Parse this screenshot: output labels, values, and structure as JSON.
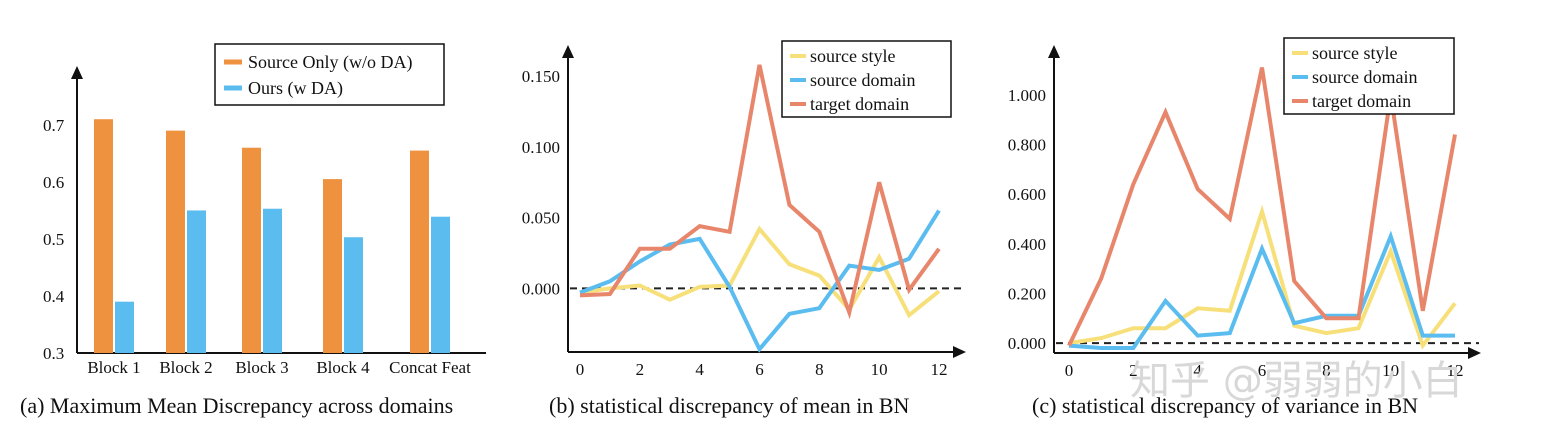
{
  "watermark": "知乎 @弱弱的小白",
  "chart_data": [
    {
      "id": "a",
      "type": "bar",
      "caption": "(a) Maximum Mean Discrepancy across domains",
      "categories": [
        "Block 1",
        "Block 2",
        "Block 3",
        "Block 4",
        "Concat Feat"
      ],
      "series": [
        {
          "name": "Source Only (w/o DA)",
          "color": "#ef9240",
          "values": [
            0.71,
            0.69,
            0.66,
            0.605,
            0.655
          ]
        },
        {
          "name": "Ours (w DA)",
          "color": "#5bbcf0",
          "values": [
            0.39,
            0.55,
            0.553,
            0.503,
            0.539
          ]
        }
      ],
      "yticks": [
        "0.3",
        "0.4",
        "0.5",
        "0.6",
        "0.7"
      ],
      "ytick_values": [
        0.3,
        0.4,
        0.5,
        0.6,
        0.7
      ],
      "ylim": [
        0.3,
        0.77
      ],
      "legend_position": "top-right"
    },
    {
      "id": "b",
      "type": "line",
      "caption": "(b) statistical discrepancy of mean in BN",
      "x": [
        0,
        1,
        2,
        3,
        4,
        5,
        6,
        7,
        8,
        9,
        10,
        11,
        12
      ],
      "series": [
        {
          "name": "source style",
          "color": "#f7e07a",
          "values": [
            -0.003,
            0.0,
            0.002,
            -0.008,
            0.001,
            0.002,
            0.042,
            0.017,
            0.009,
            -0.015,
            0.022,
            -0.019,
            -0.002
          ]
        },
        {
          "name": "source domain",
          "color": "#5bbcf0",
          "values": [
            -0.003,
            0.005,
            0.019,
            0.031,
            0.035,
            0.001,
            -0.043,
            -0.018,
            -0.014,
            0.016,
            0.013,
            0.021,
            0.055
          ]
        },
        {
          "name": "target domain",
          "color": "#e8866b",
          "values": [
            -0.005,
            -0.004,
            0.028,
            0.028,
            0.044,
            0.04,
            0.158,
            0.059,
            0.04,
            -0.017,
            0.075,
            -0.001,
            0.028
          ]
        }
      ],
      "xticks": [
        "0",
        "2",
        "4",
        "6",
        "8",
        "10",
        "12"
      ],
      "xtick_values": [
        0,
        2,
        4,
        6,
        8,
        10,
        12
      ],
      "yticks": [
        "0.000",
        "0.050",
        "0.100",
        "0.150"
      ],
      "ytick_values": [
        0,
        0.05,
        0.1,
        0.15
      ],
      "ylim": [
        -0.045,
        0.165
      ],
      "reference_line": 0,
      "legend_position": "top-right"
    },
    {
      "id": "c",
      "type": "line",
      "caption": "(c) statistical discrepancy of variance in BN",
      "x": [
        0,
        1,
        2,
        3,
        4,
        5,
        6,
        7,
        8,
        9,
        10,
        11,
        12
      ],
      "series": [
        {
          "name": "source style",
          "color": "#f7e07a",
          "values": [
            0.0,
            0.02,
            0.06,
            0.06,
            0.14,
            0.13,
            0.53,
            0.07,
            0.04,
            0.06,
            0.37,
            -0.01,
            0.16
          ]
        },
        {
          "name": "source domain",
          "color": "#5bbcf0",
          "values": [
            -0.01,
            -0.02,
            -0.02,
            0.17,
            0.03,
            0.04,
            0.38,
            0.08,
            0.11,
            0.11,
            0.43,
            0.03,
            0.03
          ]
        },
        {
          "name": "target domain",
          "color": "#e8866b",
          "values": [
            -0.01,
            0.26,
            0.64,
            0.93,
            0.62,
            0.5,
            1.11,
            0.25,
            0.1,
            0.1,
            1.0,
            0.13,
            0.84
          ]
        }
      ],
      "xticks": [
        "0",
        "2",
        "4",
        "6",
        "8",
        "10",
        "12"
      ],
      "xtick_values": [
        0,
        2,
        4,
        6,
        8,
        10,
        12
      ],
      "yticks": [
        "0.000",
        "0.200",
        "0.400",
        "0.600",
        "0.800",
        "1.000"
      ],
      "ytick_values": [
        0,
        0.2,
        0.4,
        0.6,
        0.8,
        1.0
      ],
      "ylim": [
        -0.04,
        1.12
      ],
      "reference_line": 0,
      "legend_position": "top-right"
    }
  ]
}
